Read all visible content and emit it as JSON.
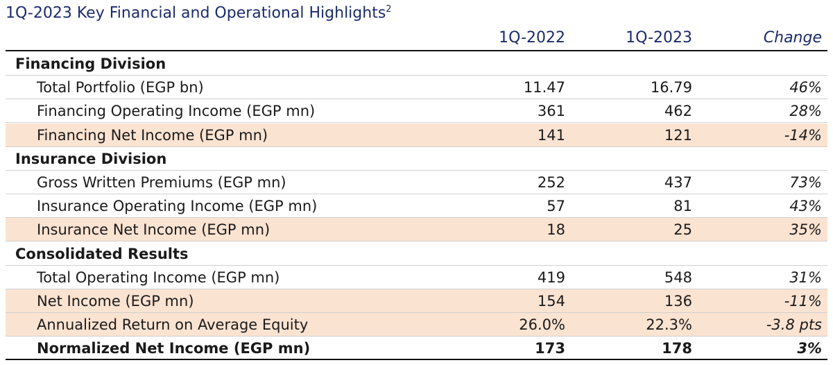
{
  "title": "1Q-2023 Key Financial and Operational Highlights",
  "title_footnote": "2",
  "columns": [
    "1Q-2022",
    "1Q-2023",
    "Change"
  ],
  "sections": [
    {
      "name": "Financing Division",
      "rows": [
        {
          "label": "Total Portfolio (EGP bn)",
          "values": [
            "11.47",
            "16.79",
            "46%"
          ]
        },
        {
          "label": "Financing Operating Income (EGP mn)",
          "values": [
            "361",
            "462",
            "28%"
          ]
        },
        {
          "label": "Financing Net Income (EGP mn)",
          "values": [
            "141",
            "121",
            "-14%"
          ],
          "highlight": true
        }
      ]
    },
    {
      "name": "Insurance Division",
      "rows": [
        {
          "label": "Gross Written Premiums (EGP mn)",
          "values": [
            "252",
            "437",
            "73%"
          ]
        },
        {
          "label": "Insurance Operating Income (EGP mn)",
          "values": [
            "57",
            "81",
            "43%"
          ]
        },
        {
          "label": "Insurance Net Income (EGP mn)",
          "values": [
            "18",
            "25",
            "35%"
          ],
          "highlight": true
        }
      ]
    },
    {
      "name": "Consolidated Results",
      "rows": [
        {
          "label": "Total Operating Income (EGP mn)",
          "values": [
            "419",
            "548",
            "31%"
          ]
        },
        {
          "label": "Net Income (EGP mn)",
          "values": [
            "154",
            "136",
            "-11%"
          ],
          "highlight": true
        },
        {
          "label": "Annualized Return on Average Equity",
          "values": [
            "26.0%",
            "22.3%",
            "-3.8 pts"
          ],
          "highlight": true
        },
        {
          "label": "Normalized Net Income (EGP mn)",
          "values": [
            "173",
            "178",
            "3%"
          ],
          "bold": true
        }
      ]
    }
  ]
}
